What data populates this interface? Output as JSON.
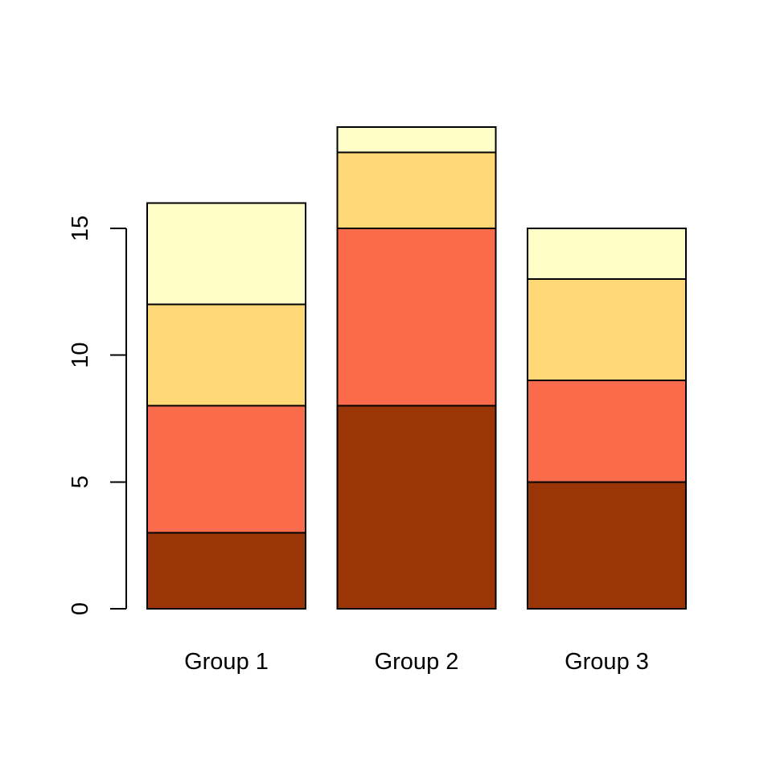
{
  "chart_data": {
    "type": "bar",
    "stacked": true,
    "title": "",
    "xlabel": "",
    "ylabel": "",
    "grid": false,
    "legend": "none",
    "categories": [
      "Group 1",
      "Group 2",
      "Group 3"
    ],
    "series": [
      {
        "name": "dark-brown-segment",
        "color": "#9A3507",
        "values": [
          3,
          8,
          5
        ]
      },
      {
        "name": "tomato-segment",
        "color": "#FA6B4B",
        "values": [
          5,
          7,
          4
        ]
      },
      {
        "name": "gold-segment",
        "color": "#FED876",
        "values": [
          4,
          3,
          4
        ]
      },
      {
        "name": "pale-yellow-segment",
        "color": "#FFFEC8",
        "values": [
          4,
          1,
          2
        ]
      }
    ],
    "totals": [
      16,
      19,
      15
    ],
    "yticks": [
      0,
      5,
      10,
      15
    ],
    "ylim": [
      0,
      19
    ],
    "bar_border_color": "#000000",
    "axis_color": "#000000",
    "text_color": "#000000",
    "background_color": "#FFFFFF"
  }
}
